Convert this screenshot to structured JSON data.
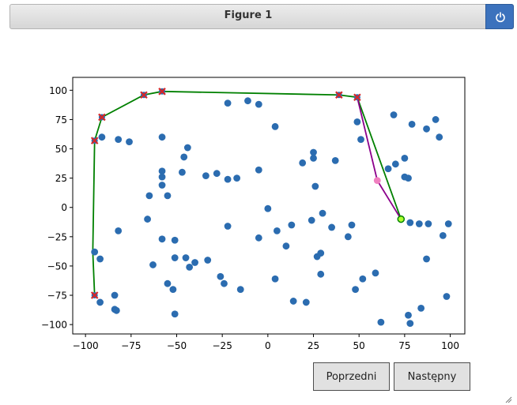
{
  "window": {
    "title": "Figure 1",
    "power_icon": "power-icon"
  },
  "buttons": {
    "prev_label": "Poprzedni",
    "next_label": "Następny"
  },
  "colors": {
    "points": "#2b6cb0",
    "hull": "#008000",
    "hull_markers": "#d62728",
    "active_edge": "#8b008b",
    "candidate": "#f080c0",
    "current": "#adff2f"
  },
  "chart_data": {
    "type": "scatter",
    "title": "",
    "xlabel": "",
    "ylabel": "",
    "xlim": [
      -107,
      108
    ],
    "ylim": [
      -108,
      111
    ],
    "xticks": [
      -100,
      -75,
      -50,
      -25,
      0,
      25,
      50,
      75,
      100
    ],
    "yticks": [
      -100,
      -75,
      -50,
      -25,
      0,
      25,
      50,
      75,
      100
    ],
    "xtick_labels": [
      "−100",
      "−75",
      "−50",
      "−25",
      "0",
      "25",
      "50",
      "75",
      "100"
    ],
    "ytick_labels": [
      "−100",
      "−75",
      "−50",
      "−25",
      "0",
      "25",
      "50",
      "75",
      "100"
    ],
    "grid": false,
    "points": [
      [
        -22,
        89
      ],
      [
        -11,
        91
      ],
      [
        -5,
        88
      ],
      [
        4,
        69
      ],
      [
        69,
        79
      ],
      [
        79,
        71
      ],
      [
        87,
        67
      ],
      [
        92,
        75
      ],
      [
        94,
        60
      ],
      [
        49,
        73
      ],
      [
        51,
        58
      ],
      [
        -82,
        58
      ],
      [
        -76,
        56
      ],
      [
        -91,
        60
      ],
      [
        -58,
        60
      ],
      [
        -44,
        51
      ],
      [
        -46,
        43
      ],
      [
        -58,
        31
      ],
      [
        -58,
        26
      ],
      [
        -58,
        19
      ],
      [
        -55,
        10
      ],
      [
        -47,
        30
      ],
      [
        -34,
        27
      ],
      [
        -28,
        29
      ],
      [
        -22,
        24
      ],
      [
        -17,
        25
      ],
      [
        -5,
        32
      ],
      [
        19,
        38
      ],
      [
        25,
        47
      ],
      [
        25,
        42
      ],
      [
        26,
        18
      ],
      [
        37,
        40
      ],
      [
        66,
        33
      ],
      [
        70,
        37
      ],
      [
        75,
        42
      ],
      [
        75,
        26
      ],
      [
        77,
        25
      ],
      [
        -65,
        10
      ],
      [
        -66,
        -10
      ],
      [
        0,
        -1
      ],
      [
        24,
        -11
      ],
      [
        30,
        -5
      ],
      [
        -22,
        -16
      ],
      [
        -58,
        -27
      ],
      [
        -51,
        -28
      ],
      [
        -82,
        -20
      ],
      [
        -5,
        -26
      ],
      [
        5,
        -20
      ],
      [
        13,
        -15
      ],
      [
        35,
        -17
      ],
      [
        46,
        -15
      ],
      [
        44,
        -25
      ],
      [
        78,
        -13
      ],
      [
        83,
        -14
      ],
      [
        88,
        -14
      ],
      [
        96,
        -24
      ],
      [
        99,
        -14
      ],
      [
        -92,
        -44
      ],
      [
        -63,
        -49
      ],
      [
        -51,
        -43
      ],
      [
        -45,
        -43
      ],
      [
        -43,
        -51
      ],
      [
        -40,
        -47
      ],
      [
        -33,
        -45
      ],
      [
        -26,
        -59
      ],
      [
        -24,
        -65
      ],
      [
        -15,
        -70
      ],
      [
        -55,
        -65
      ],
      [
        -52,
        -70
      ],
      [
        10,
        -33
      ],
      [
        27,
        -42
      ],
      [
        29,
        -39
      ],
      [
        29,
        -57
      ],
      [
        48,
        -70
      ],
      [
        52,
        -61
      ],
      [
        59,
        -56
      ],
      [
        87,
        -44
      ],
      [
        4,
        -61
      ],
      [
        -92,
        -81
      ],
      [
        -84,
        -75
      ],
      [
        -83,
        -88
      ],
      [
        -84,
        -87
      ],
      [
        -51,
        -91
      ],
      [
        14,
        -80
      ],
      [
        21,
        -81
      ],
      [
        62,
        -98
      ],
      [
        77,
        -92
      ],
      [
        78,
        -99
      ],
      [
        84,
        -86
      ],
      [
        98,
        -76
      ],
      [
        -95,
        -38
      ]
    ],
    "hull_path": [
      [
        73,
        -10
      ],
      [
        49,
        94
      ],
      [
        39,
        96
      ],
      [
        -58,
        99
      ],
      [
        -68,
        96
      ],
      [
        -91,
        77
      ],
      [
        -95,
        57
      ],
      [
        -96,
        -38
      ],
      [
        -95,
        -75
      ]
    ],
    "hull_markers": [
      [
        49,
        94
      ],
      [
        39,
        96
      ],
      [
        -58,
        99
      ],
      [
        -68,
        96
      ],
      [
        -91,
        77
      ],
      [
        -95,
        57
      ],
      [
        -95,
        -75
      ]
    ],
    "active_edge": [
      [
        49,
        94
      ],
      [
        60,
        23
      ],
      [
        73,
        -10
      ]
    ],
    "candidate_point": [
      60,
      23
    ],
    "current_point": [
      73,
      -10
    ]
  }
}
